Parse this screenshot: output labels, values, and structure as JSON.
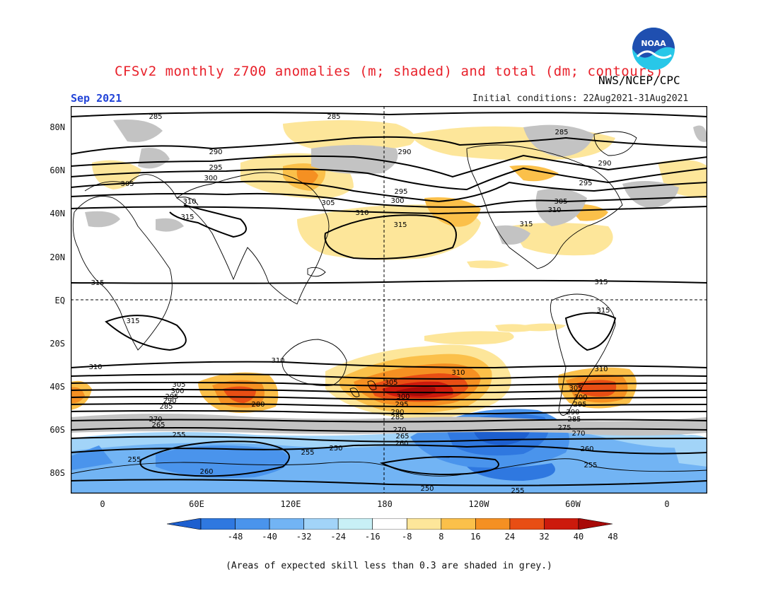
{
  "header": {
    "title": "CFSv2 monthly z700 anomalies (m; shaded) and total (dm; contours)",
    "agency": "NWS/NCEP/CPC",
    "valid_month": "Sep 2021",
    "initial_conditions": "Initial conditions: 22Aug2021-31Aug2021"
  },
  "logo": {
    "text": "NOAA",
    "icon": "noaa-logo-icon",
    "colors": [
      "#1f4fb0",
      "#28c7e8",
      "#ffffff"
    ]
  },
  "map": {
    "lat_labels": [
      "80N",
      "60N",
      "40N",
      "20N",
      "EQ",
      "20S",
      "40S",
      "60S",
      "80S"
    ],
    "lon_labels": [
      "0",
      "60E",
      "120E",
      "180",
      "120W",
      "60W",
      "0"
    ],
    "contour_labels": {
      "north": [
        "285",
        "285",
        "285",
        "290",
        "290",
        "290",
        "295",
        "295",
        "295",
        "300",
        "300",
        "305",
        "305",
        "305",
        "310",
        "310",
        "310",
        "315",
        "315",
        "315"
      ],
      "tropics": [
        "315",
        "315",
        "315",
        "315"
      ],
      "south": [
        "310",
        "310",
        "310",
        "310",
        "305",
        "305",
        "305",
        "300",
        "300",
        "300",
        "295",
        "295",
        "295",
        "290",
        "290",
        "290",
        "285",
        "285",
        "285",
        "280",
        "270",
        "270",
        "270",
        "265",
        "265",
        "260",
        "260",
        "260",
        "255",
        "255",
        "255",
        "255",
        "255",
        "250",
        "250",
        "275"
      ]
    }
  },
  "colorbar": {
    "labels": [
      "-48",
      "-40",
      "-32",
      "-24",
      "-16",
      "-8",
      "8",
      "16",
      "24",
      "32",
      "40",
      "48"
    ],
    "colors": [
      "#1d5fcf",
      "#2f78e0",
      "#4a94ec",
      "#72b4f4",
      "#a2d4f8",
      "#c8f0f6",
      "#ffffff",
      "#fde69a",
      "#fbc04a",
      "#f59022",
      "#e84e14",
      "#cc1a0c",
      "#a80a08"
    ]
  },
  "footnote": "(Areas of expected skill less than 0.3 are shaded in grey.)"
}
